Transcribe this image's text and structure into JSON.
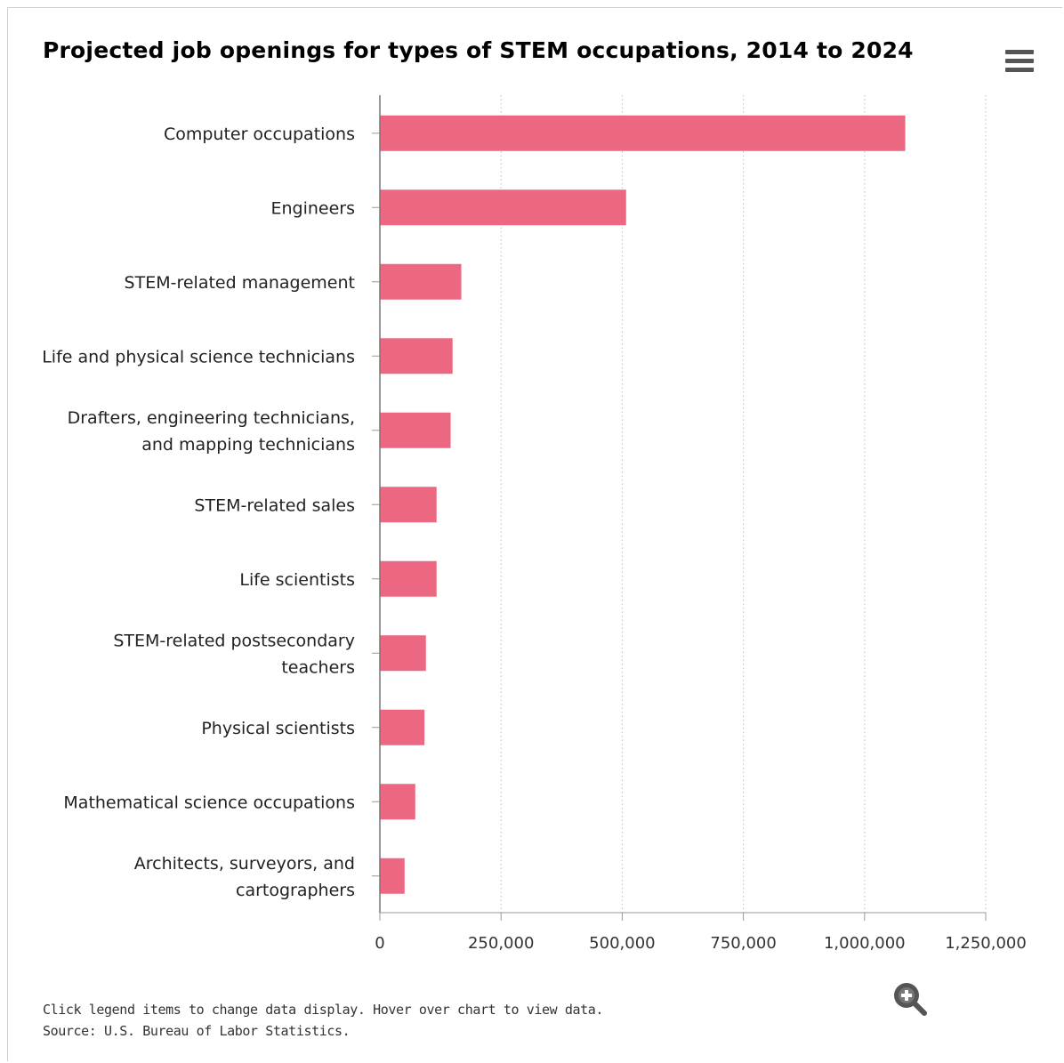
{
  "header": {
    "title": "Projected job openings for types of STEM occupations, 2014 to 2024",
    "menu_icon": "hamburger-menu-icon"
  },
  "chart_data": {
    "type": "bar",
    "orientation": "horizontal",
    "title": "Projected job openings for types of STEM occupations, 2014 to 2024",
    "categories": [
      "Computer occupations",
      "Engineers",
      "STEM-related management",
      "Life and physical science technicians",
      "Drafters, engineering technicians, and mapping technicians",
      "STEM-related sales",
      "Life scientists",
      "STEM-related postsecondary teachers",
      "Physical scientists",
      "Mathematical science occupations",
      "Architects, surveyors, and cartographers"
    ],
    "category_lines": [
      [
        "Computer occupations"
      ],
      [
        "Engineers"
      ],
      [
        "STEM-related management"
      ],
      [
        "Life and physical science technicians"
      ],
      [
        "Drafters, engineering technicians,",
        "and mapping technicians"
      ],
      [
        "STEM-related sales"
      ],
      [
        "Life scientists"
      ],
      [
        "STEM-related postsecondary",
        "teachers"
      ],
      [
        "Physical scientists"
      ],
      [
        "Mathematical science occupations"
      ],
      [
        "Architects, surveyors, and",
        "cartographers"
      ]
    ],
    "values": [
      1084000,
      508000,
      168000,
      150000,
      146000,
      117000,
      117000,
      95000,
      92000,
      73000,
      51000
    ],
    "xlim": [
      0,
      1250000
    ],
    "xticks": [
      0,
      250000,
      500000,
      750000,
      1000000,
      1250000
    ],
    "xtick_labels": [
      "0",
      "250,000",
      "500,000",
      "750,000",
      "1,000,000",
      "1,250,000"
    ],
    "grid": "vertical dotted",
    "bar_color": "#ec6882",
    "xlabel": "",
    "ylabel": ""
  },
  "footer": {
    "note": "Click legend items to change data display. Hover over chart to view data.",
    "source": "Source: U.S. Bureau of Labor Statistics.",
    "zoom_icon": "zoom-in-icon"
  }
}
